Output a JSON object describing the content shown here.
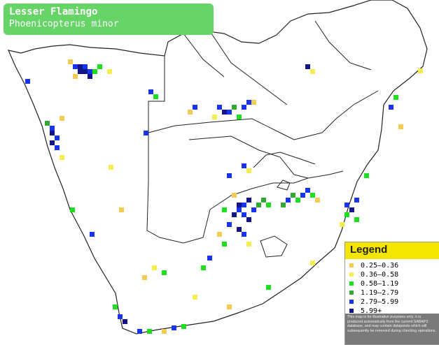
{
  "title": {
    "common_name": "Lesser Flamingo",
    "scientific_name": "Phoenicopterus minor"
  },
  "legend": {
    "title": "Legend",
    "items": [
      {
        "label": "0.25–0.36",
        "color": "#f2cc55"
      },
      {
        "label": "0.36–0.58",
        "color": "#f5ee52"
      },
      {
        "label": "0.58–1.19",
        "color": "#1fdd1f"
      },
      {
        "label": "1.19–2.79",
        "color": "#34a834"
      },
      {
        "label": "2.79–5.99",
        "color": "#1a33ee"
      },
      {
        "label": "5.99+",
        "color": "#13138a"
      }
    ],
    "disclaimer": "This map is for illustrative purposes only; it is produced automatically from the current SABAP2 database, and may contain datapoints which will subsequently be removed during checking operations."
  },
  "colors": {
    "title_bg": "#66d466",
    "legend_header_bg": "#f5e600",
    "boundary_line": "#222222"
  }
}
